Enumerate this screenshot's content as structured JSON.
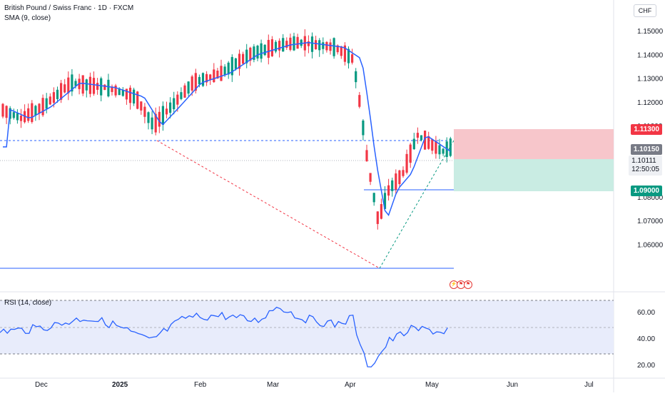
{
  "header": {
    "symbol_title": "British Pound / Swiss Franc · 1D · FXCM",
    "indicator": "SMA (9, close)",
    "currency": "CHF"
  },
  "rsi": {
    "label": "RSI (14, close)",
    "ticks": [
      "60.00",
      "40.00",
      "20.00"
    ]
  },
  "price_axis": {
    "ticks": [
      "1.15000",
      "1.14000",
      "1.13000",
      "1.12000",
      "1.11000",
      "1.08000",
      "1.07000",
      "1.06000"
    ]
  },
  "price_labels": {
    "stop": "1.11300",
    "entry": "1.10150",
    "current": "1.10111",
    "countdown": "12:50:05",
    "target": "1.09000"
  },
  "time_axis": {
    "labels": [
      "Dec",
      "2025",
      "Feb",
      "Mar",
      "Apr",
      "May",
      "Jun",
      "Jul"
    ]
  },
  "colors": {
    "up": "#089981",
    "down": "#f23645",
    "sma": "#2962ff",
    "rsi": "#2962ff",
    "stop_zone": "#f7c6cb",
    "target_zone": "#c9ece3",
    "rsi_band": "#e8ecfb"
  },
  "icons": [
    "lightning-icon",
    "flag-icon",
    "flag-icon"
  ]
}
